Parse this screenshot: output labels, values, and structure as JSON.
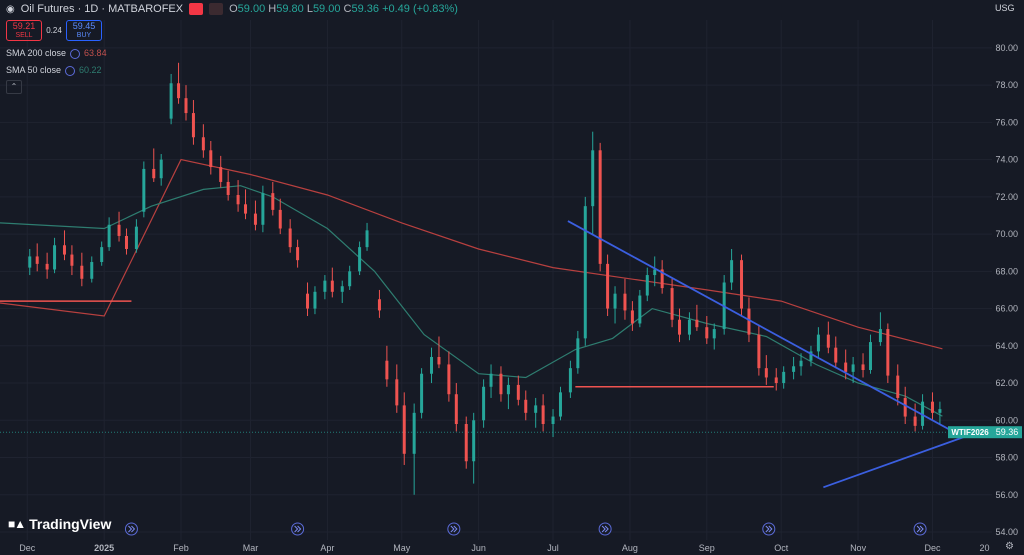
{
  "header": {
    "title": "Oil Futures · 1D · MATBAROFEX",
    "open_label": "O",
    "open": "59.00",
    "high_label": "H",
    "high": "59.80",
    "low_label": "L",
    "low": "59.00",
    "close_label": "C",
    "close": "59.36",
    "change": "+0.49 (+0.83%)"
  },
  "trade_boxes": {
    "sell_price": "59.21",
    "sell_label": "SELL",
    "spread": "0.24",
    "buy_price": "59.45",
    "buy_label": "BUY"
  },
  "indicators": [
    {
      "label": "SMA 200 close",
      "value": "63.84",
      "color": "#b8403f"
    },
    {
      "label": "SMA 50 close",
      "value": "60.22",
      "color": "#2e7d70"
    }
  ],
  "currency": "USG",
  "logo_text": "TradingView",
  "colors": {
    "up": "#26a69a",
    "down": "#ef5350",
    "trendline": "#3b5fe0",
    "support": "#ef5350",
    "background": "#161a25"
  },
  "chart_data": {
    "type": "candlestick",
    "title": "",
    "x_ticks": [
      "Dec",
      "2025",
      "Feb",
      "Mar",
      "Apr",
      "May",
      "Jun",
      "Jul",
      "Aug",
      "Sep",
      "Oct",
      "Nov",
      "Dec",
      "20"
    ],
    "y_ticks": [
      "80.00",
      "78.00",
      "76.00",
      "74.00",
      "72.00",
      "70.00",
      "68.00",
      "66.00",
      "64.00",
      "62.00",
      "60.00",
      "58.00",
      "56.00",
      "54.00"
    ],
    "ylim": [
      54,
      80.8
    ],
    "x_range": [
      "2024-11-20",
      "2025-12-25"
    ],
    "last_price": {
      "symbol": "WTIF2026",
      "value": "59.36",
      "y": 59.36
    },
    "sma200": [
      [
        "2024-11-20",
        66.3
      ],
      [
        "2025-01-01",
        65.6
      ],
      [
        "2025-02-01",
        74.0
      ],
      [
        "2025-03-01",
        73.2
      ],
      [
        "2025-04-01",
        72.1
      ],
      [
        "2025-05-01",
        70.6
      ],
      [
        "2025-06-01",
        69.2
      ],
      [
        "2025-07-01",
        68.2
      ],
      [
        "2025-08-01",
        67.6
      ],
      [
        "2025-09-01",
        67.0
      ],
      [
        "2025-10-01",
        66.4
      ],
      [
        "2025-11-01",
        65.0
      ],
      [
        "2025-12-05",
        63.84
      ]
    ],
    "sma50": [
      [
        "2024-11-20",
        70.6
      ],
      [
        "2025-01-01",
        70.3
      ],
      [
        "2025-01-20",
        71.5
      ],
      [
        "2025-02-10",
        72.4
      ],
      [
        "2025-02-25",
        72.6
      ],
      [
        "2025-03-10",
        72.0
      ],
      [
        "2025-04-01",
        70.3
      ],
      [
        "2025-04-20",
        68.0
      ],
      [
        "2025-05-10",
        64.6
      ],
      [
        "2025-06-01",
        62.5
      ],
      [
        "2025-06-20",
        62.3
      ],
      [
        "2025-07-10",
        63.8
      ],
      [
        "2025-07-25",
        64.4
      ],
      [
        "2025-08-10",
        66.0
      ],
      [
        "2025-09-01",
        65.2
      ],
      [
        "2025-09-25",
        64.5
      ],
      [
        "2025-10-15",
        63.0
      ],
      [
        "2025-11-01",
        62.0
      ],
      [
        "2025-11-20",
        61.3
      ],
      [
        "2025-12-05",
        60.22
      ]
    ],
    "trendlines": [
      {
        "name": "",
        "points": [
          [
            "2025-07-07",
            70.7
          ],
          [
            "2025-12-12",
            59.2
          ]
        ]
      },
      {
        "name": "",
        "points": [
          [
            "2025-10-18",
            56.4
          ],
          [
            "2025-12-22",
            59.5
          ]
        ]
      }
    ],
    "support_lines": [
      {
        "y": 66.4,
        "from": "2024-11-20",
        "to": "2025-01-12"
      },
      {
        "y": 61.8,
        "from": "2025-07-10",
        "to": "2025-09-28"
      }
    ],
    "candles": [
      {
        "d": "2024-12-02",
        "o": 68.2,
        "h": 69.2,
        "l": 67.8,
        "c": 68.8
      },
      {
        "d": "2024-12-05",
        "o": 68.8,
        "h": 69.5,
        "l": 68.0,
        "c": 68.4
      },
      {
        "d": "2024-12-09",
        "o": 68.4,
        "h": 69.0,
        "l": 67.6,
        "c": 68.1
      },
      {
        "d": "2024-12-12",
        "o": 68.1,
        "h": 69.8,
        "l": 67.9,
        "c": 69.4
      },
      {
        "d": "2024-12-16",
        "o": 69.4,
        "h": 70.2,
        "l": 68.6,
        "c": 68.9
      },
      {
        "d": "2024-12-19",
        "o": 68.9,
        "h": 69.4,
        "l": 67.8,
        "c": 68.3
      },
      {
        "d": "2024-12-23",
        "o": 68.3,
        "h": 69.0,
        "l": 67.2,
        "c": 67.6
      },
      {
        "d": "2024-12-27",
        "o": 67.6,
        "h": 68.8,
        "l": 67.4,
        "c": 68.5
      },
      {
        "d": "2024-12-31",
        "o": 68.5,
        "h": 69.6,
        "l": 68.3,
        "c": 69.3
      },
      {
        "d": "2025-01-03",
        "o": 69.3,
        "h": 70.9,
        "l": 69.1,
        "c": 70.5
      },
      {
        "d": "2025-01-07",
        "o": 70.5,
        "h": 71.2,
        "l": 69.6,
        "c": 69.9
      },
      {
        "d": "2025-01-10",
        "o": 69.9,
        "h": 70.3,
        "l": 68.9,
        "c": 69.2
      },
      {
        "d": "2025-01-14",
        "o": 69.2,
        "h": 70.8,
        "l": 69.0,
        "c": 70.4
      },
      {
        "d": "2025-01-17",
        "o": 71.2,
        "h": 73.9,
        "l": 70.9,
        "c": 73.5
      },
      {
        "d": "2025-01-21",
        "o": 73.5,
        "h": 74.6,
        "l": 72.8,
        "c": 73.0
      },
      {
        "d": "2025-01-24",
        "o": 73.0,
        "h": 74.3,
        "l": 72.6,
        "c": 74.0
      },
      {
        "d": "2025-01-28",
        "o": 76.2,
        "h": 78.6,
        "l": 75.9,
        "c": 78.1
      },
      {
        "d": "2025-01-31",
        "o": 78.1,
        "h": 79.2,
        "l": 77.0,
        "c": 77.3
      },
      {
        "d": "2025-02-03",
        "o": 77.3,
        "h": 78.0,
        "l": 76.1,
        "c": 76.5
      },
      {
        "d": "2025-02-06",
        "o": 76.5,
        "h": 77.2,
        "l": 74.8,
        "c": 75.2
      },
      {
        "d": "2025-02-10",
        "o": 75.2,
        "h": 75.9,
        "l": 74.1,
        "c": 74.5
      },
      {
        "d": "2025-02-13",
        "o": 74.5,
        "h": 75.0,
        "l": 73.2,
        "c": 73.6
      },
      {
        "d": "2025-02-17",
        "o": 73.6,
        "h": 74.2,
        "l": 72.5,
        "c": 72.8
      },
      {
        "d": "2025-02-20",
        "o": 72.8,
        "h": 73.4,
        "l": 71.8,
        "c": 72.1
      },
      {
        "d": "2025-02-24",
        "o": 72.1,
        "h": 72.9,
        "l": 71.2,
        "c": 71.6
      },
      {
        "d": "2025-02-27",
        "o": 71.6,
        "h": 72.4,
        "l": 70.8,
        "c": 71.1
      },
      {
        "d": "2025-03-03",
        "o": 71.1,
        "h": 71.8,
        "l": 70.2,
        "c": 70.5
      },
      {
        "d": "2025-03-06",
        "o": 70.5,
        "h": 72.6,
        "l": 70.1,
        "c": 72.2
      },
      {
        "d": "2025-03-10",
        "o": 72.2,
        "h": 72.8,
        "l": 71.0,
        "c": 71.3
      },
      {
        "d": "2025-03-13",
        "o": 71.3,
        "h": 71.9,
        "l": 70.0,
        "c": 70.3
      },
      {
        "d": "2025-03-17",
        "o": 70.3,
        "h": 70.8,
        "l": 69.0,
        "c": 69.3
      },
      {
        "d": "2025-03-20",
        "o": 69.3,
        "h": 69.7,
        "l": 68.2,
        "c": 68.6
      },
      {
        "d": "2025-03-24",
        "o": 66.8,
        "h": 67.4,
        "l": 65.6,
        "c": 66.0
      },
      {
        "d": "2025-03-27",
        "o": 66.0,
        "h": 67.2,
        "l": 65.7,
        "c": 66.9
      },
      {
        "d": "2025-03-31",
        "o": 66.9,
        "h": 67.8,
        "l": 66.5,
        "c": 67.5
      },
      {
        "d": "2025-04-03",
        "o": 67.5,
        "h": 68.2,
        "l": 66.6,
        "c": 66.9
      },
      {
        "d": "2025-04-07",
        "o": 66.9,
        "h": 67.5,
        "l": 66.3,
        "c": 67.2
      },
      {
        "d": "2025-04-10",
        "o": 67.2,
        "h": 68.3,
        "l": 67.0,
        "c": 68.0
      },
      {
        "d": "2025-04-14",
        "o": 68.0,
        "h": 69.6,
        "l": 67.8,
        "c": 69.3
      },
      {
        "d": "2025-04-17",
        "o": 69.3,
        "h": 70.6,
        "l": 69.1,
        "c": 70.2
      },
      {
        "d": "2025-04-22",
        "o": 66.5,
        "h": 67.0,
        "l": 65.5,
        "c": 65.9
      },
      {
        "d": "2025-04-25",
        "o": 63.2,
        "h": 64.0,
        "l": 61.8,
        "c": 62.2
      },
      {
        "d": "2025-04-29",
        "o": 62.2,
        "h": 63.0,
        "l": 60.4,
        "c": 60.8
      },
      {
        "d": "2025-05-02",
        "o": 60.8,
        "h": 61.5,
        "l": 57.6,
        "c": 58.2
      },
      {
        "d": "2025-05-06",
        "o": 58.2,
        "h": 60.9,
        "l": 56.0,
        "c": 60.4
      },
      {
        "d": "2025-05-09",
        "o": 60.4,
        "h": 62.8,
        "l": 60.1,
        "c": 62.5
      },
      {
        "d": "2025-05-13",
        "o": 62.5,
        "h": 63.9,
        "l": 62.0,
        "c": 63.4
      },
      {
        "d": "2025-05-16",
        "o": 63.4,
        "h": 64.5,
        "l": 62.8,
        "c": 63.0
      },
      {
        "d": "2025-05-20",
        "o": 63.0,
        "h": 63.7,
        "l": 61.0,
        "c": 61.4
      },
      {
        "d": "2025-05-23",
        "o": 61.4,
        "h": 62.0,
        "l": 59.4,
        "c": 59.8
      },
      {
        "d": "2025-05-27",
        "o": 59.8,
        "h": 60.2,
        "l": 57.4,
        "c": 57.8
      },
      {
        "d": "2025-05-30",
        "o": 57.8,
        "h": 60.4,
        "l": 56.6,
        "c": 60.0
      },
      {
        "d": "2025-06-03",
        "o": 60.0,
        "h": 62.2,
        "l": 59.6,
        "c": 61.8
      },
      {
        "d": "2025-06-06",
        "o": 61.8,
        "h": 63.0,
        "l": 61.2,
        "c": 62.5
      },
      {
        "d": "2025-06-10",
        "o": 62.5,
        "h": 62.9,
        "l": 61.0,
        "c": 61.4
      },
      {
        "d": "2025-06-13",
        "o": 61.4,
        "h": 62.3,
        "l": 60.6,
        "c": 61.9
      },
      {
        "d": "2025-06-17",
        "o": 61.9,
        "h": 62.4,
        "l": 60.8,
        "c": 61.1
      },
      {
        "d": "2025-06-20",
        "o": 61.1,
        "h": 61.6,
        "l": 60.0,
        "c": 60.4
      },
      {
        "d": "2025-06-24",
        "o": 60.4,
        "h": 61.2,
        "l": 59.6,
        "c": 60.8
      },
      {
        "d": "2025-06-27",
        "o": 60.8,
        "h": 61.4,
        "l": 59.4,
        "c": 59.8
      },
      {
        "d": "2025-07-01",
        "o": 59.8,
        "h": 60.6,
        "l": 59.1,
        "c": 60.2
      },
      {
        "d": "2025-07-04",
        "o": 60.2,
        "h": 61.8,
        "l": 60.0,
        "c": 61.5
      },
      {
        "d": "2025-07-08",
        "o": 61.5,
        "h": 63.2,
        "l": 61.2,
        "c": 62.8
      },
      {
        "d": "2025-07-11",
        "o": 62.8,
        "h": 64.8,
        "l": 62.5,
        "c": 64.4
      },
      {
        "d": "2025-07-14",
        "o": 64.4,
        "h": 72.0,
        "l": 64.0,
        "c": 71.5
      },
      {
        "d": "2025-07-17",
        "o": 71.5,
        "h": 75.5,
        "l": 70.0,
        "c": 74.5
      },
      {
        "d": "2025-07-20",
        "o": 74.5,
        "h": 74.9,
        "l": 68.0,
        "c": 68.4
      },
      {
        "d": "2025-07-23",
        "o": 68.4,
        "h": 68.9,
        "l": 65.6,
        "c": 66.0
      },
      {
        "d": "2025-07-26",
        "o": 66.0,
        "h": 67.2,
        "l": 65.2,
        "c": 66.8
      },
      {
        "d": "2025-07-30",
        "o": 66.8,
        "h": 67.6,
        "l": 65.4,
        "c": 65.9
      },
      {
        "d": "2025-08-02",
        "o": 65.9,
        "h": 66.4,
        "l": 64.8,
        "c": 65.2
      },
      {
        "d": "2025-08-05",
        "o": 65.2,
        "h": 67.0,
        "l": 65.0,
        "c": 66.7
      },
      {
        "d": "2025-08-08",
        "o": 66.7,
        "h": 68.2,
        "l": 66.4,
        "c": 67.8
      },
      {
        "d": "2025-08-11",
        "o": 67.8,
        "h": 68.8,
        "l": 67.2,
        "c": 68.1
      },
      {
        "d": "2025-08-14",
        "o": 68.1,
        "h": 68.6,
        "l": 66.8,
        "c": 67.1
      },
      {
        "d": "2025-08-18",
        "o": 67.1,
        "h": 67.6,
        "l": 65.0,
        "c": 65.4
      },
      {
        "d": "2025-08-21",
        "o": 65.4,
        "h": 66.0,
        "l": 64.2,
        "c": 64.6
      },
      {
        "d": "2025-08-25",
        "o": 64.6,
        "h": 65.8,
        "l": 64.3,
        "c": 65.4
      },
      {
        "d": "2025-08-28",
        "o": 65.4,
        "h": 66.2,
        "l": 64.8,
        "c": 65.0
      },
      {
        "d": "2025-09-01",
        "o": 65.0,
        "h": 65.6,
        "l": 64.1,
        "c": 64.4
      },
      {
        "d": "2025-09-04",
        "o": 64.4,
        "h": 65.2,
        "l": 63.8,
        "c": 64.9
      },
      {
        "d": "2025-09-08",
        "o": 64.9,
        "h": 67.8,
        "l": 64.6,
        "c": 67.4
      },
      {
        "d": "2025-09-11",
        "o": 67.4,
        "h": 69.2,
        "l": 67.0,
        "c": 68.6
      },
      {
        "d": "2025-09-15",
        "o": 68.6,
        "h": 68.9,
        "l": 65.6,
        "c": 66.0
      },
      {
        "d": "2025-09-18",
        "o": 66.0,
        "h": 66.6,
        "l": 64.2,
        "c": 64.6
      },
      {
        "d": "2025-09-22",
        "o": 64.6,
        "h": 65.1,
        "l": 62.4,
        "c": 62.8
      },
      {
        "d": "2025-09-25",
        "o": 62.8,
        "h": 63.5,
        "l": 61.9,
        "c": 62.3
      },
      {
        "d": "2025-09-29",
        "o": 62.3,
        "h": 62.8,
        "l": 61.6,
        "c": 62.0
      },
      {
        "d": "2025-10-02",
        "o": 62.0,
        "h": 62.9,
        "l": 61.7,
        "c": 62.6
      },
      {
        "d": "2025-10-06",
        "o": 62.6,
        "h": 63.4,
        "l": 62.2,
        "c": 62.9
      },
      {
        "d": "2025-10-09",
        "o": 62.9,
        "h": 63.6,
        "l": 62.4,
        "c": 63.2
      },
      {
        "d": "2025-10-13",
        "o": 63.2,
        "h": 64.0,
        "l": 62.9,
        "c": 63.7
      },
      {
        "d": "2025-10-16",
        "o": 63.7,
        "h": 65.0,
        "l": 63.3,
        "c": 64.6
      },
      {
        "d": "2025-10-20",
        "o": 64.6,
        "h": 65.3,
        "l": 63.6,
        "c": 63.9
      },
      {
        "d": "2025-10-23",
        "o": 63.9,
        "h": 64.5,
        "l": 62.8,
        "c": 63.1
      },
      {
        "d": "2025-10-27",
        "o": 63.1,
        "h": 63.8,
        "l": 62.2,
        "c": 62.6
      },
      {
        "d": "2025-10-30",
        "o": 62.6,
        "h": 63.4,
        "l": 62.0,
        "c": 63.0
      },
      {
        "d": "2025-11-03",
        "o": 63.0,
        "h": 63.6,
        "l": 62.3,
        "c": 62.7
      },
      {
        "d": "2025-11-06",
        "o": 62.7,
        "h": 64.6,
        "l": 62.5,
        "c": 64.2
      },
      {
        "d": "2025-11-10",
        "o": 64.2,
        "h": 65.8,
        "l": 64.0,
        "c": 64.9
      },
      {
        "d": "2025-11-13",
        "o": 64.9,
        "h": 65.2,
        "l": 62.0,
        "c": 62.4
      },
      {
        "d": "2025-11-17",
        "o": 62.4,
        "h": 63.0,
        "l": 60.8,
        "c": 61.2
      },
      {
        "d": "2025-11-20",
        "o": 61.2,
        "h": 61.8,
        "l": 59.8,
        "c": 60.2
      },
      {
        "d": "2025-11-24",
        "o": 60.2,
        "h": 60.9,
        "l": 59.4,
        "c": 59.7
      },
      {
        "d": "2025-11-27",
        "o": 59.7,
        "h": 61.4,
        "l": 59.5,
        "c": 61.0
      },
      {
        "d": "2025-12-01",
        "o": 61.0,
        "h": 61.5,
        "l": 60.0,
        "c": 60.4
      },
      {
        "d": "2025-12-04",
        "o": 60.4,
        "h": 61.0,
        "l": 59.8,
        "c": 60.6
      }
    ]
  }
}
